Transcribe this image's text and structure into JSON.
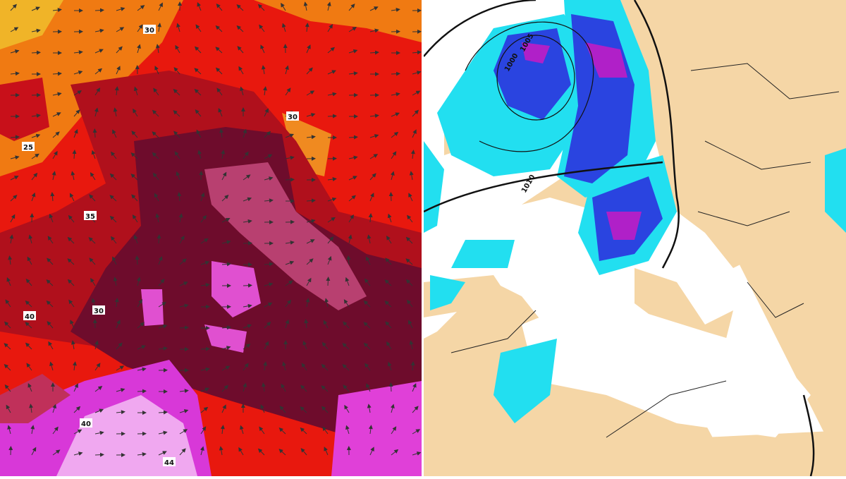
{
  "left_map": {
    "labels": [
      "30",
      "30",
      "25",
      "35",
      "30",
      "40",
      "40",
      "44"
    ]
  },
  "right_map": {
    "isobar_labels": [
      "1000",
      "1005",
      "1010"
    ]
  }
}
